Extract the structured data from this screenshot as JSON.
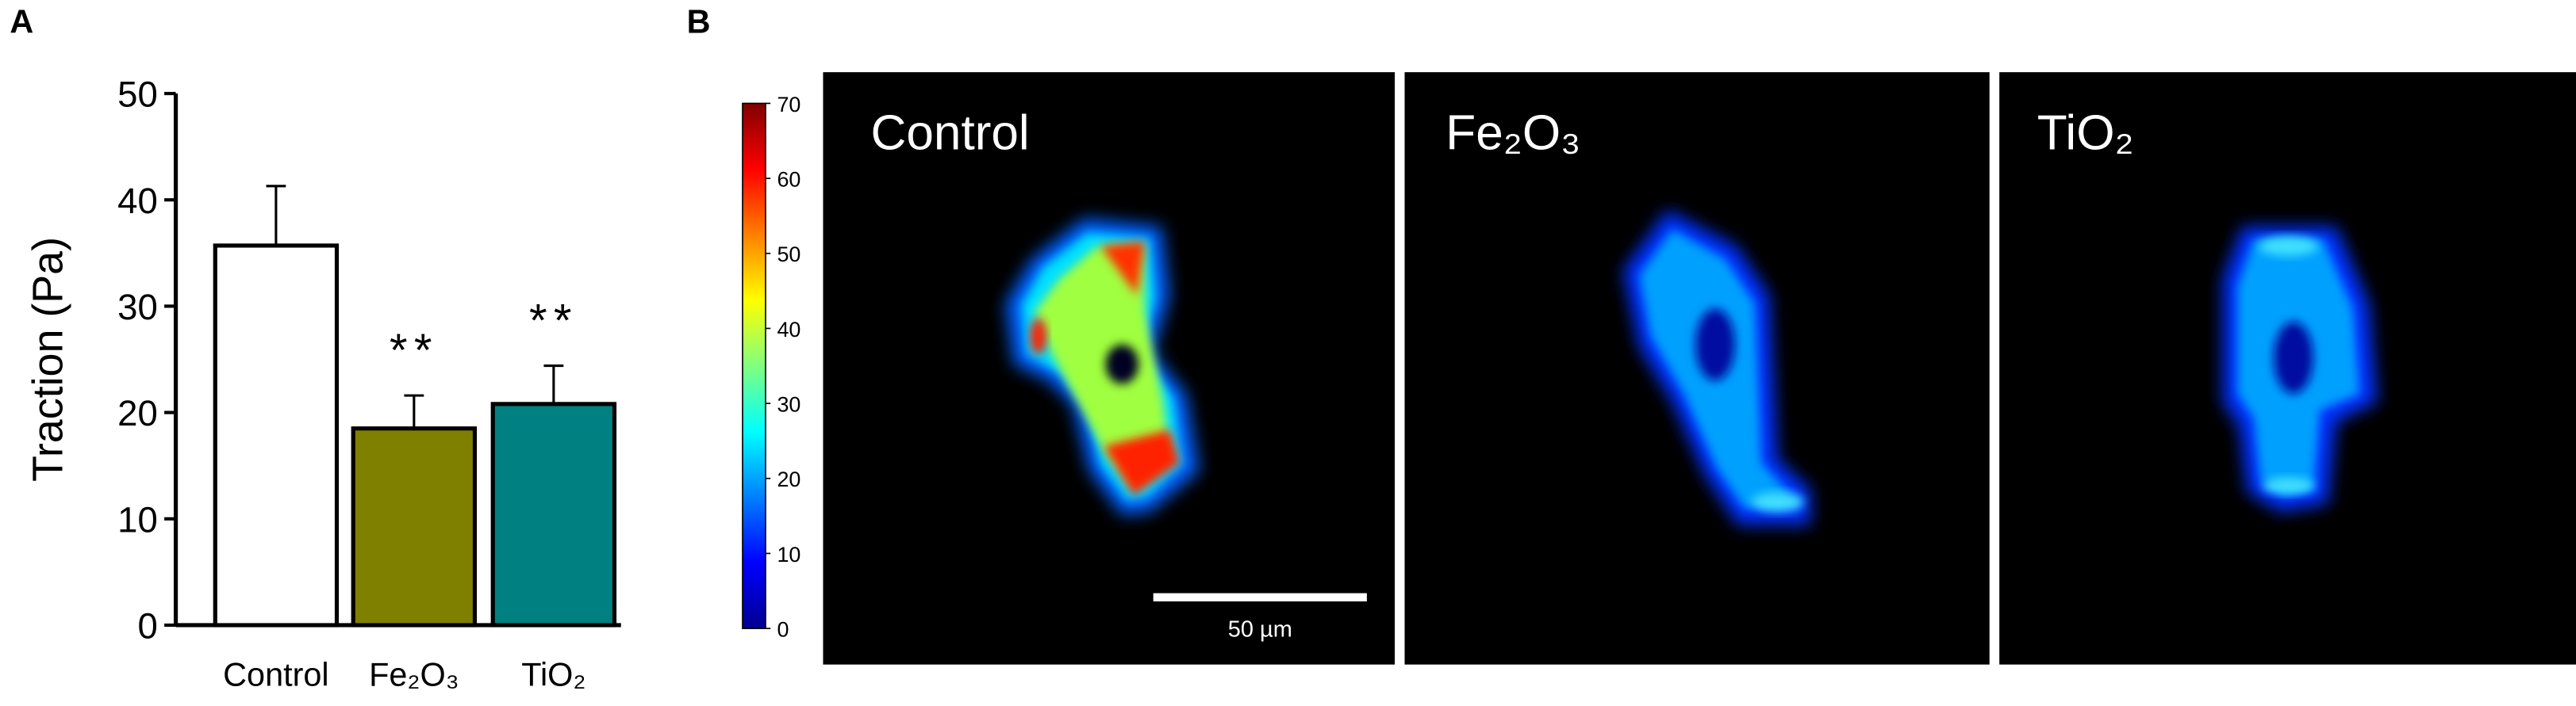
{
  "panel_labels": [
    "A",
    "B"
  ],
  "chart_data": [
    {
      "type": "bar",
      "ylabel": "Traction (Pa)",
      "categories": [
        "Control",
        "Fe₂O₃",
        "TiO₂"
      ],
      "values": [
        35.7,
        18.5,
        20.8
      ],
      "errors": [
        5.6,
        3.1,
        3.6
      ],
      "colors": [
        "#ffffff",
        "#808000",
        "#008080"
      ],
      "significance": [
        null,
        "**",
        "**"
      ],
      "ylim": [
        0,
        50
      ],
      "yticks": [
        0,
        10,
        20,
        30,
        40,
        50
      ]
    },
    {
      "type": "heatmap",
      "panels": [
        "Control",
        "Fe₂O₃",
        "TiO₂"
      ],
      "clim": [
        0,
        70
      ],
      "cticks": [
        0,
        10,
        20,
        30,
        40,
        50,
        60,
        70
      ],
      "scale_bar": "50 µm"
    }
  ]
}
